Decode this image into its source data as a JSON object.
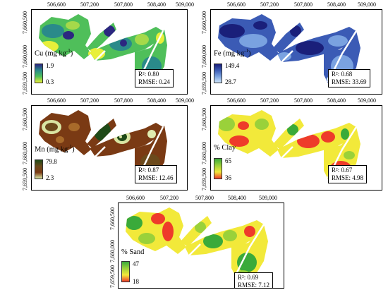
{
  "x_ticks": [
    "506,600",
    "507,200",
    "507,800",
    "508,400",
    "509,000"
  ],
  "y_ticks": [
    "7,660,500",
    "7,660,000",
    "7,659,500"
  ],
  "panels": [
    {
      "id": "cu",
      "legend_title": "Cu (mg kg",
      "legend_unit_sup": "-1",
      "legend_title_close": ")",
      "legend_max": "1.9",
      "legend_min": "0.3",
      "colors": [
        "#2c2780",
        "#2a8a8a",
        "#4fbf5a",
        "#e8ef3a"
      ],
      "r2": "R²: 0.80",
      "rmse": "RMSE: 0.24"
    },
    {
      "id": "fe",
      "legend_title": "Fe (mg kg",
      "legend_unit_sup": "-1",
      "legend_title_close": ")",
      "legend_max": "149.4",
      "legend_min": "28.7",
      "colors": [
        "#1a1f7a",
        "#3b5bb5",
        "#7aa2e0",
        "#cfe6fb"
      ],
      "r2": "R²: 0.68",
      "rmse": "RMSE: 33.69"
    },
    {
      "id": "mn",
      "legend_title": "Mn (mg kg",
      "legend_unit_sup": "-1",
      "legend_title_close": ")",
      "legend_max": "79.8",
      "legend_min": "2.3",
      "colors": [
        "#1f4a18",
        "#6b4a1c",
        "#7a3a14",
        "#d9e6a3"
      ],
      "r2": "R²: 0.87",
      "rmse": "RMSE: 12.46"
    },
    {
      "id": "clay",
      "legend_title": "% Clay",
      "legend_unit_sup": "",
      "legend_title_close": "",
      "legend_max": "65",
      "legend_min": "36",
      "colors": [
        "#3aaa3a",
        "#9ad13a",
        "#f2e93a",
        "#ee3b2a"
      ],
      "r2": "R²: 0.67",
      "rmse": "RMSE: 4.98"
    },
    {
      "id": "sand",
      "legend_title": "% Sand",
      "legend_unit_sup": "",
      "legend_title_close": "",
      "legend_max": "47",
      "legend_min": "18",
      "colors": [
        "#3aaa3a",
        "#9ad13a",
        "#f2e93a",
        "#ee3b2a"
      ],
      "r2": "R²: 0.69",
      "rmse": "RMSE: 7.12"
    }
  ]
}
